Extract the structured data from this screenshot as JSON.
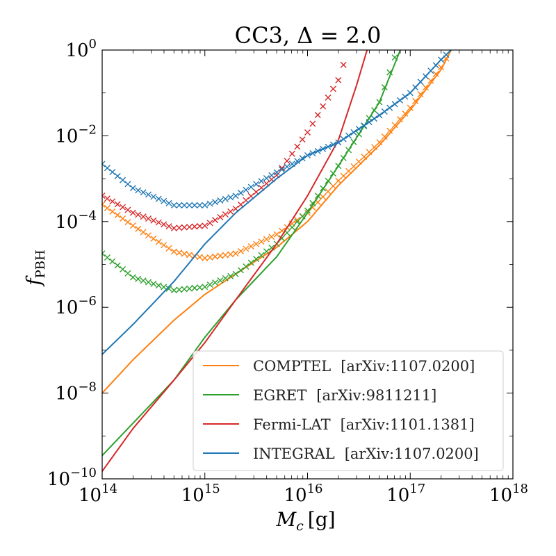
{
  "chart_data": {
    "type": "line",
    "title": "CC3, Δ = 2.0",
    "xlabel_main": "M",
    "xlabel_sub": "c",
    "xlabel_unit": "[g]",
    "ylabel_main": "f",
    "ylabel_sub": "PBH",
    "xscale": "log",
    "yscale": "log",
    "xlim": [
      100000000000000.0,
      1e+18
    ],
    "ylim": [
      1e-10,
      1
    ],
    "x_ticks": [
      {
        "base": "10",
        "exp": "14",
        "value": 100000000000000.0
      },
      {
        "base": "10",
        "exp": "15",
        "value": 1000000000000000.0
      },
      {
        "base": "10",
        "exp": "16",
        "value": 1e+16
      },
      {
        "base": "10",
        "exp": "17",
        "value": 1e+17
      },
      {
        "base": "10",
        "exp": "18",
        "value": 1e+18
      }
    ],
    "y_ticks": [
      {
        "base": "10",
        "exp": "0",
        "value": 1
      },
      {
        "base": "10",
        "exp": "−2",
        "value": 0.01
      },
      {
        "base": "10",
        "exp": "−4",
        "value": 0.0001
      },
      {
        "base": "10",
        "exp": "−6",
        "value": 1e-06
      },
      {
        "base": "10",
        "exp": "−8",
        "value": 1e-08
      },
      {
        "base": "10",
        "exp": "−10",
        "value": 1e-10
      }
    ],
    "legend_position": "lower-right",
    "series": [
      {
        "name": "COMPTEL",
        "ref": "[arXiv:1107.0200]",
        "color": "#ff7f0e",
        "solid": [
          [
            100000000000000.0,
            1e-08
          ],
          [
            200000000000000.0,
            6e-08
          ],
          [
            500000000000000.0,
            5e-07
          ],
          [
            1000000000000000.0,
            2e-06
          ],
          [
            2000000000000000.0,
            6e-06
          ],
          [
            5000000000000000.0,
            2.5e-05
          ],
          [
            1e+16,
            0.0001
          ],
          [
            2e+16,
            0.0007
          ],
          [
            5e+16,
            0.006
          ],
          [
            1e+17,
            0.04
          ],
          [
            2e+17,
            0.35
          ],
          [
            2.5e+17,
            1
          ]
        ],
        "markers": [
          [
            100000000000000.0,
            0.00025
          ],
          [
            200000000000000.0,
            8e-05
          ],
          [
            500000000000000.0,
            2e-05
          ],
          [
            1000000000000000.0,
            1.4e-05
          ],
          [
            2000000000000000.0,
            1.8e-05
          ],
          [
            5000000000000000.0,
            5e-05
          ],
          [
            1e+16,
            0.00016
          ],
          [
            2e+16,
            0.0009
          ],
          [
            5e+16,
            0.007
          ],
          [
            1e+17,
            0.045
          ],
          [
            2e+17,
            0.4
          ],
          [
            2.5e+17,
            1
          ]
        ]
      },
      {
        "name": "EGRET",
        "ref": "[arXiv:9811211]",
        "color": "#2ca02c",
        "solid": [
          [
            100000000000000.0,
            3.5e-10
          ],
          [
            200000000000000.0,
            2e-09
          ],
          [
            500000000000000.0,
            2e-08
          ],
          [
            1000000000000000.0,
            2e-07
          ],
          [
            2000000000000000.0,
            1.5e-06
          ],
          [
            5000000000000000.0,
            1.5e-05
          ],
          [
            1e+16,
            0.00016
          ],
          [
            2e+16,
            0.002
          ],
          [
            5e+16,
            0.06
          ],
          [
            8e+16,
            1
          ]
        ],
        "markers": [
          [
            100000000000000.0,
            1.8e-05
          ],
          [
            200000000000000.0,
            5e-06
          ],
          [
            500000000000000.0,
            2.5e-06
          ],
          [
            1000000000000000.0,
            3e-06
          ],
          [
            2000000000000000.0,
            6e-06
          ],
          [
            5000000000000000.0,
            3e-05
          ],
          [
            1e+16,
            0.00018
          ],
          [
            2e+16,
            0.002
          ],
          [
            5e+16,
            0.06
          ],
          [
            7.5e+16,
            1
          ]
        ]
      },
      {
        "name": "Fermi-LAT",
        "ref": "[arXiv:1101.1381]",
        "color": "#d62728",
        "solid": [
          [
            100000000000000.0,
            1.5e-10
          ],
          [
            200000000000000.0,
            1.5e-09
          ],
          [
            500000000000000.0,
            2e-08
          ],
          [
            1000000000000000.0,
            1.5e-07
          ],
          [
            2000000000000000.0,
            1.5e-06
          ],
          [
            5000000000000000.0,
            3e-05
          ],
          [
            1e+16,
            0.0004
          ],
          [
            2e+16,
            0.008
          ],
          [
            3e+16,
            0.15
          ],
          [
            3.8e+16,
            1
          ]
        ],
        "markers": [
          [
            100000000000000.0,
            0.0004
          ],
          [
            200000000000000.0,
            0.00016
          ],
          [
            500000000000000.0,
            7e-05
          ],
          [
            1000000000000000.0,
            8e-05
          ],
          [
            2000000000000000.0,
            0.0002
          ],
          [
            5000000000000000.0,
            0.0012
          ],
          [
            1e+16,
            0.012
          ],
          [
            2e+16,
            0.2
          ],
          [
            2.5e+16,
            1
          ]
        ]
      },
      {
        "name": "INTEGRAL",
        "ref": "[arXiv:1107.0200]",
        "color": "#1f77b4",
        "solid": [
          [
            100000000000000.0,
            8e-08
          ],
          [
            200000000000000.0,
            4e-07
          ],
          [
            500000000000000.0,
            4e-06
          ],
          [
            1000000000000000.0,
            3e-05
          ],
          [
            2000000000000000.0,
            0.00016
          ],
          [
            5000000000000000.0,
            0.001
          ],
          [
            1e+16,
            0.0035
          ],
          [
            2e+16,
            0.007
          ],
          [
            5e+16,
            0.03
          ],
          [
            1e+17,
            0.1
          ],
          [
            2e+17,
            0.6
          ],
          [
            2.5e+17,
            1
          ]
        ],
        "markers": [
          [
            100000000000000.0,
            0.0022
          ],
          [
            200000000000000.0,
            0.0006
          ],
          [
            500000000000000.0,
            0.00024
          ],
          [
            1000000000000000.0,
            0.00024
          ],
          [
            2000000000000000.0,
            0.0004
          ],
          [
            5000000000000000.0,
            0.0014
          ],
          [
            1e+16,
            0.0035
          ],
          [
            2e+16,
            0.007
          ],
          [
            5e+16,
            0.03
          ],
          [
            1e+17,
            0.1
          ],
          [
            2e+17,
            0.6
          ],
          [
            2.5e+17,
            1
          ]
        ]
      }
    ]
  }
}
